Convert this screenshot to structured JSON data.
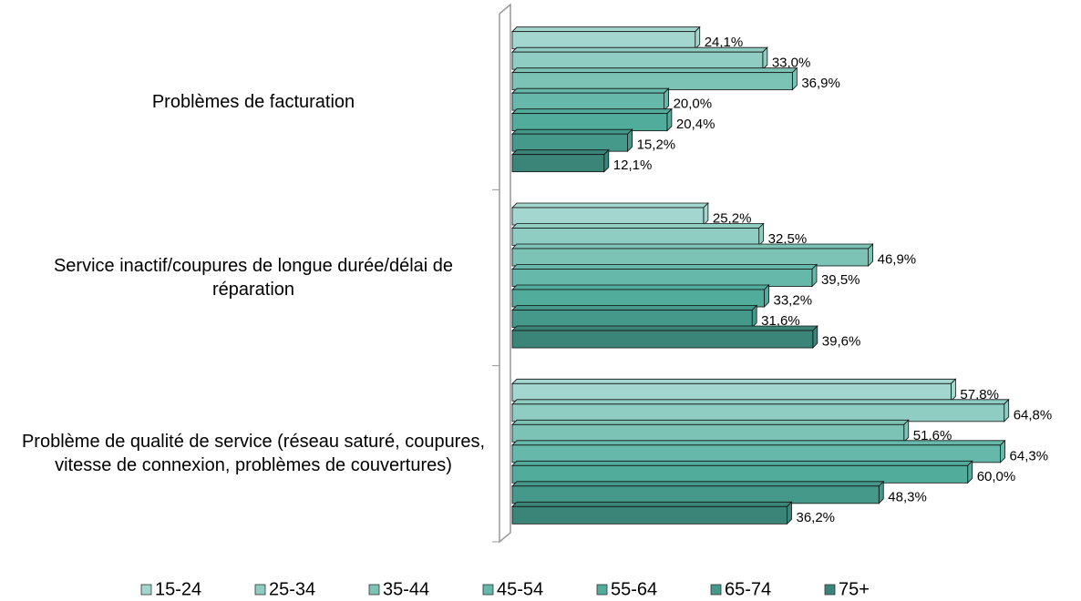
{
  "chart_data": {
    "type": "bar",
    "orientation": "horizontal",
    "categories": [
      "Problèmes de facturation",
      "Service inactif/coupures de longue durée/délai de réparation",
      "Problème de qualité de service (réseau saturé, coupures, vitesse de connexion, problèmes de couvertures)"
    ],
    "series": [
      {
        "name": "15-24",
        "color": "#a3d6ce",
        "values": [
          24.1,
          25.2,
          57.8
        ],
        "value_labels": [
          "24,1%",
          "25,2%",
          "57,8%"
        ]
      },
      {
        "name": "25-34",
        "color": "#8fcdc2",
        "values": [
          33.0,
          32.5,
          64.8
        ],
        "value_labels": [
          "33,0%",
          "32,5%",
          "64,8%"
        ]
      },
      {
        "name": "35-44",
        "color": "#7cc3b6",
        "values": [
          36.9,
          46.9,
          51.6
        ],
        "value_labels": [
          "36,9%",
          "46,9%",
          "51,6%"
        ]
      },
      {
        "name": "45-54",
        "color": "#66b8aa",
        "values": [
          20.0,
          39.5,
          64.3
        ],
        "value_labels": [
          "20,0%",
          "39,5%",
          "64,3%"
        ]
      },
      {
        "name": "55-64",
        "color": "#52ac9c",
        "values": [
          20.4,
          33.2,
          60.0
        ],
        "value_labels": [
          "20,4%",
          "33,2%",
          "60,0%"
        ]
      },
      {
        "name": "65-74",
        "color": "#45998b",
        "values": [
          15.2,
          31.6,
          48.3
        ],
        "value_labels": [
          "15,2%",
          "31,6%",
          "48,3%"
        ]
      },
      {
        "name": "75+",
        "color": "#3b8578",
        "values": [
          12.1,
          39.6,
          36.2
        ],
        "value_labels": [
          "12,1%",
          "39,6%",
          "36,2%"
        ]
      }
    ],
    "xlim": [
      0,
      70
    ],
    "legend": "bottom"
  }
}
